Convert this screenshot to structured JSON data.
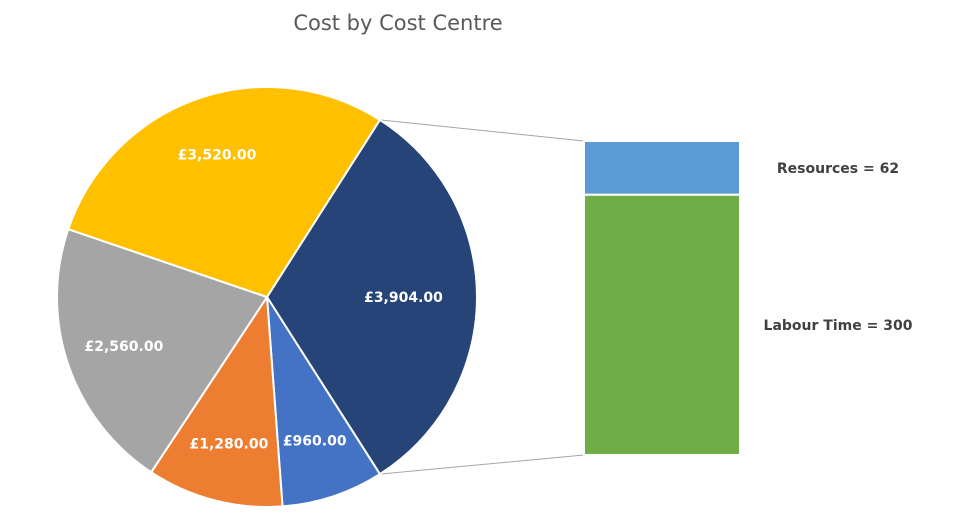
{
  "chart_data": {
    "type": "bar-of-pie",
    "title": "Cost by Cost Centre",
    "pie": {
      "slices": [
        {
          "label": "£3,904.00",
          "value": 3904,
          "color": "#264478"
        },
        {
          "label": "£960.00",
          "value": 960,
          "color": "#4472C4"
        },
        {
          "label": "£1,280.00",
          "value": 1280,
          "color": "#ED7D31"
        },
        {
          "label": "£2,560.00",
          "value": 2560,
          "color": "#A5A5A5"
        },
        {
          "label": "£3,520.00",
          "value": 3520,
          "color": "#FFC000"
        }
      ],
      "exploded_slice_index": 0
    },
    "bar": {
      "segments": [
        {
          "label": "Resources = 62",
          "value": 62,
          "color": "#5B9BD5"
        },
        {
          "label": "Labour Time = 300",
          "value": 300,
          "color": "#70AD47"
        }
      ]
    },
    "legend": "none"
  }
}
